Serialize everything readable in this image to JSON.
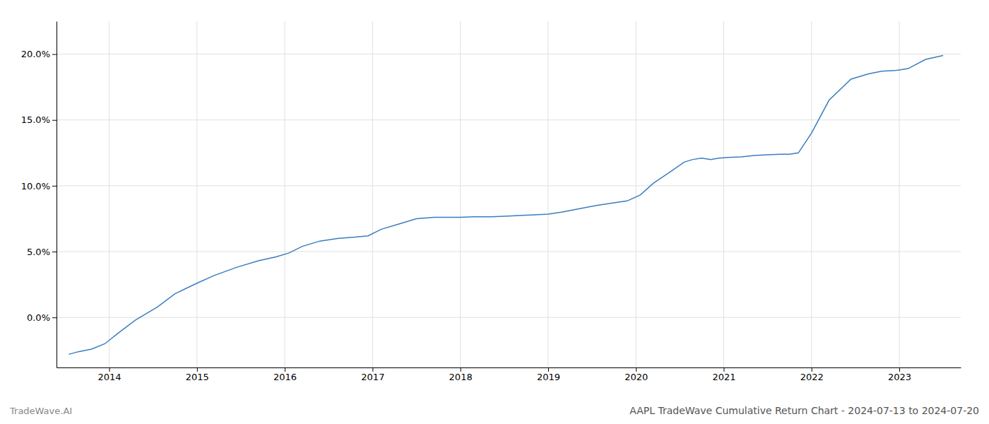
{
  "chart_data": {
    "type": "line",
    "title": "AAPL TradeWave Cumulative Return Chart - 2024-07-13 to 2024-07-20",
    "annotations": [
      "TradeWave.AI"
    ],
    "color": "#3a7ebf",
    "grid": true,
    "x": [
      2013.54,
      2013.65,
      2013.8,
      2013.95,
      2014.1,
      2014.3,
      2014.55,
      2014.75,
      2015.0,
      2015.2,
      2015.45,
      2015.7,
      2015.9,
      2016.05,
      2016.2,
      2016.4,
      2016.6,
      2016.8,
      2016.95,
      2017.1,
      2017.3,
      2017.5,
      2017.7,
      2017.85,
      2018.0,
      2018.15,
      2018.35,
      2018.55,
      2018.7,
      2018.85,
      2019.0,
      2019.15,
      2019.35,
      2019.55,
      2019.75,
      2019.9,
      2020.05,
      2020.2,
      2020.4,
      2020.55,
      2020.65,
      2020.75,
      2020.85,
      2020.95,
      2021.05,
      2021.2,
      2021.35,
      2021.5,
      2021.65,
      2021.75,
      2021.85,
      2022.0,
      2022.2,
      2022.45,
      2022.65,
      2022.8,
      2022.95,
      2023.1,
      2023.3,
      2023.5
    ],
    "values": [
      -2.8,
      -2.6,
      -2.4,
      -2.0,
      -1.2,
      -0.2,
      0.8,
      1.8,
      2.6,
      3.2,
      3.8,
      4.3,
      4.6,
      4.9,
      5.4,
      5.8,
      6.0,
      6.1,
      6.2,
      6.7,
      7.1,
      7.5,
      7.6,
      7.6,
      7.6,
      7.65,
      7.65,
      7.7,
      7.75,
      7.8,
      7.85,
      8.0,
      8.25,
      8.5,
      8.7,
      8.85,
      9.3,
      10.2,
      11.1,
      11.8,
      12.0,
      12.1,
      12.0,
      12.1,
      12.15,
      12.2,
      12.3,
      12.35,
      12.4,
      12.4,
      12.5,
      14.0,
      16.5,
      18.1,
      18.5,
      18.7,
      18.75,
      18.9,
      19.6,
      19.9
    ],
    "xlim": [
      2013.4,
      2023.7
    ],
    "ylim": [
      -3.8,
      22.5
    ],
    "xticks": [
      2014,
      2015,
      2016,
      2017,
      2018,
      2019,
      2020,
      2021,
      2022,
      2023
    ],
    "yticks": [
      {
        "value": 0.0,
        "label": "0.0%"
      },
      {
        "value": 5.0,
        "label": "5.0%"
      },
      {
        "value": 10.0,
        "label": "10.0%"
      },
      {
        "value": 15.0,
        "label": "15.0%"
      },
      {
        "value": 20.0,
        "label": "20.0%"
      }
    ]
  }
}
